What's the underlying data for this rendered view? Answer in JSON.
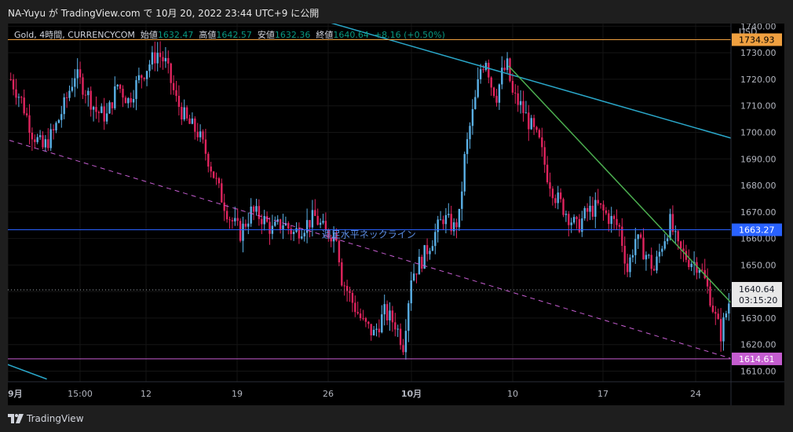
{
  "header": {
    "title": "NA-Yuyu が TradingView.com で 10月 20, 2022 23:44 UTC+9 に公開"
  },
  "legend": {
    "symbol": "Gold, 4時間, CURRENCYCOM",
    "open_label": "始値",
    "open": "1632.47",
    "high_label": "高値",
    "high": "1642.57",
    "low_label": "安値",
    "low": "1632.36",
    "close_label": "終値",
    "close": "1640.64",
    "change": "+8.16 (+0.50%)"
  },
  "footer": {
    "brand": "TradingView"
  },
  "colors": {
    "up": "#5ab0e6",
    "down": "#e0245e",
    "orange": "#f0a040",
    "blue": "#2962ff",
    "magenta": "#c55dd0",
    "cyan": "#2aa7c9",
    "green": "#4caf50",
    "annotation": "#5b8ee6"
  },
  "chart_data": {
    "type": "candlestick",
    "currency": "USD",
    "ylim": [
      1606,
      1741
    ],
    "y_ticks": [
      1610,
      1620,
      1630,
      1640,
      1650,
      1660,
      1670,
      1680,
      1690,
      1700,
      1710,
      1720,
      1730,
      1740
    ],
    "x_ticks": [
      "9月",
      "15:00",
      "12",
      "19",
      "26",
      "10月",
      "10",
      "17",
      "24"
    ],
    "price_labels": [
      {
        "value": 1734.93,
        "label": "1734.93",
        "color": "#f0a040"
      },
      {
        "value": 1663.27,
        "label": "1663.27",
        "color": "#2962ff"
      },
      {
        "value": 1614.61,
        "label": "1614.61",
        "color": "#c55dd0"
      }
    ],
    "current_price": {
      "value": 1640.64,
      "label": "1640.64",
      "countdown": "03:15:20"
    },
    "annotation": "週足水平ネックライン",
    "keypoints": [
      [
        0,
        1720
      ],
      [
        4,
        1712
      ],
      [
        8,
        1700
      ],
      [
        12,
        1694
      ],
      [
        16,
        1700
      ],
      [
        20,
        1710
      ],
      [
        24,
        1722
      ],
      [
        28,
        1716
      ],
      [
        32,
        1708
      ],
      [
        36,
        1706
      ],
      [
        40,
        1718
      ],
      [
        44,
        1712
      ],
      [
        48,
        1720
      ],
      [
        52,
        1726
      ],
      [
        55,
        1730
      ],
      [
        58,
        1726
      ],
      [
        62,
        1712
      ],
      [
        66,
        1704
      ],
      [
        70,
        1700
      ],
      [
        74,
        1690
      ],
      [
        78,
        1678
      ],
      [
        82,
        1668
      ],
      [
        86,
        1662
      ],
      [
        90,
        1670
      ],
      [
        94,
        1668
      ],
      [
        98,
        1663
      ],
      [
        102,
        1666
      ],
      [
        106,
        1662
      ],
      [
        110,
        1665
      ],
      [
        114,
        1668
      ],
      [
        118,
        1662
      ],
      [
        122,
        1662
      ],
      [
        124,
        1645
      ],
      [
        128,
        1636
      ],
      [
        132,
        1628
      ],
      [
        136,
        1624
      ],
      [
        140,
        1632
      ],
      [
        144,
        1628
      ],
      [
        147,
        1620
      ],
      [
        150,
        1646
      ],
      [
        154,
        1652
      ],
      [
        158,
        1660
      ],
      [
        162,
        1668
      ],
      [
        166,
        1664
      ],
      [
        168,
        1668
      ],
      [
        170,
        1690
      ],
      [
        172,
        1702
      ],
      [
        174,
        1712
      ],
      [
        176,
        1724
      ],
      [
        178,
        1728
      ],
      [
        180,
        1718
      ],
      [
        182,
        1714
      ],
      [
        184,
        1722
      ],
      [
        186,
        1725
      ],
      [
        188,
        1714
      ],
      [
        191,
        1710
      ],
      [
        194,
        1704
      ],
      [
        198,
        1696
      ],
      [
        201,
        1684
      ],
      [
        204,
        1676
      ],
      [
        208,
        1670
      ],
      [
        212,
        1664
      ],
      [
        216,
        1670
      ],
      [
        220,
        1672
      ],
      [
        224,
        1668
      ],
      [
        228,
        1664
      ],
      [
        231,
        1648
      ],
      [
        234,
        1660
      ],
      [
        238,
        1654
      ],
      [
        241,
        1648
      ],
      [
        244,
        1658
      ],
      [
        247,
        1666
      ],
      [
        250,
        1656
      ],
      [
        254,
        1652
      ],
      [
        258,
        1650
      ],
      [
        262,
        1638
      ],
      [
        264,
        1630
      ],
      [
        266,
        1624
      ],
      [
        268,
        1632
      ],
      [
        270,
        1640
      ]
    ],
    "trendlines": [
      {
        "name": "cyan-trendline",
        "from": [
          -10,
          1779
        ],
        "to": [
          287,
          1693
        ],
        "color": "#2aa7c9",
        "style": "solid"
      },
      {
        "name": "green-trendline",
        "from": [
          187,
          1725
        ],
        "to": [
          286,
          1619
        ],
        "color": "#4caf50",
        "style": "solid"
      },
      {
        "name": "dashed-support-line",
        "from": [
          0,
          1697
        ],
        "to": [
          286,
          1610
        ],
        "color": "#c55dd0",
        "style": "dashed"
      },
      {
        "name": "cyan-lower-line",
        "from": [
          -2,
          1613
        ],
        "to": [
          14,
          1607
        ],
        "color": "#2aa7c9",
        "style": "solid"
      }
    ],
    "horizontal_lines": [
      {
        "name": "orange-resistance-line",
        "value": 1734.93,
        "color": "#f0a040"
      },
      {
        "name": "blue-neckline",
        "value": 1663.27,
        "color": "#2962ff"
      },
      {
        "name": "magenta-support-line",
        "value": 1614.61,
        "color": "#c55dd0"
      }
    ]
  }
}
